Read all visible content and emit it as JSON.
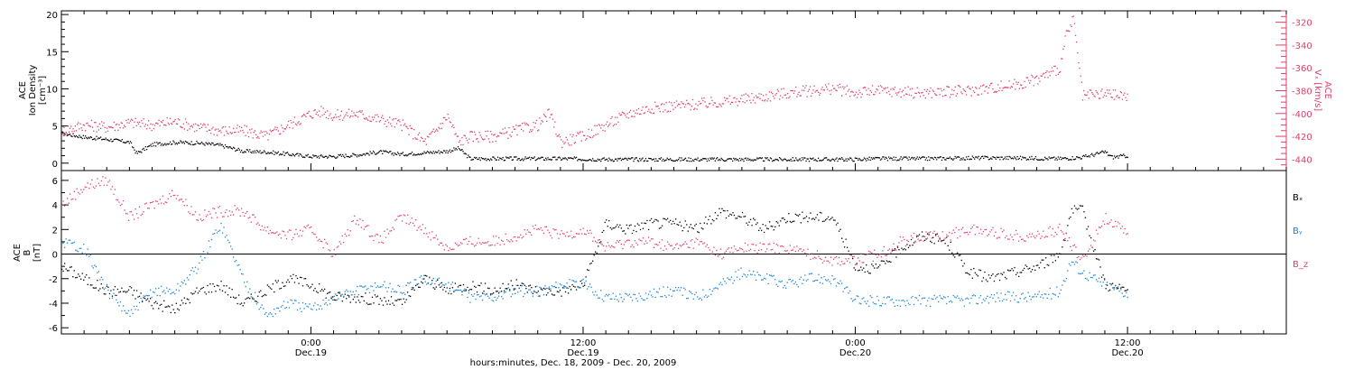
{
  "colors": {
    "black": "#000000",
    "red": "#e0406a",
    "blue": "#1a84d6"
  },
  "x_axis": {
    "title": "hours:minutes, Dec. 18, 2009 - Dec. 20, 2009",
    "range_hours": [
      0,
      54
    ],
    "ticks": [
      {
        "hour": 11,
        "time": "0:00",
        "date": "Dec.19"
      },
      {
        "hour": 23,
        "time": "12:00",
        "date": "Dec.19"
      },
      {
        "hour": 35,
        "time": "0:00",
        "date": "Dec.20"
      },
      {
        "hour": 47,
        "time": "12:00",
        "date": "Dec.20"
      }
    ]
  },
  "chart_data": [
    {
      "type": "scatter",
      "panel": "top",
      "ylabel_left": [
        "ACE",
        "Ion Density",
        "[cm⁻³]"
      ],
      "ylabel_right": [
        "ACE",
        "Vₓ [km/s]"
      ],
      "ylim_left": [
        -1,
        20.5
      ],
      "ylim_right": [
        -450,
        -310
      ],
      "yticks_left": [
        0,
        5,
        10,
        15,
        20
      ],
      "yticks_right": [
        -320,
        -340,
        -360,
        -380,
        -400,
        -420,
        -440
      ],
      "series": [
        {
          "key": "density",
          "axis": "left",
          "color": "black",
          "x": [
            0,
            1,
            2,
            3,
            3.3,
            4,
            5,
            6,
            7,
            8,
            9,
            10,
            11,
            12,
            13,
            14,
            15,
            16,
            17,
            17.5,
            18,
            19,
            20,
            22,
            24,
            26,
            28,
            30,
            32,
            34,
            35,
            36,
            38,
            40,
            42,
            44,
            45,
            46,
            46.3,
            47
          ],
          "y": [
            4,
            3.5,
            3.2,
            2.8,
            1.3,
            2.5,
            2.8,
            2.7,
            2.4,
            1.6,
            1.5,
            1.2,
            0.9,
            0.9,
            1.1,
            1.5,
            1.2,
            1.4,
            1.6,
            2.0,
            0.6,
            0.6,
            0.6,
            0.6,
            0.5,
            0.5,
            0.5,
            0.5,
            0.5,
            0.5,
            0.5,
            0.6,
            0.6,
            0.7,
            0.7,
            0.6,
            0.8,
            1.5,
            0.8,
            1.0
          ]
        },
        {
          "key": "vx",
          "axis": "right",
          "color": "red",
          "x": [
            0,
            1,
            2,
            3,
            4,
            5,
            6,
            7,
            8,
            9,
            10,
            11,
            11.5,
            12,
            13,
            14,
            15,
            16,
            16.5,
            17,
            17.5,
            18,
            19,
            20,
            21,
            21.5,
            22,
            23,
            24,
            25,
            26,
            28,
            30,
            32,
            34,
            35,
            36,
            38,
            40,
            42,
            43,
            44,
            44.3,
            44.6,
            45,
            46,
            47
          ],
          "y": [
            -415,
            -410,
            -412,
            -408,
            -410,
            -407,
            -412,
            -415,
            -415,
            -420,
            -410,
            -400,
            -398,
            -402,
            -400,
            -405,
            -410,
            -425,
            -415,
            -402,
            -425,
            -420,
            -420,
            -415,
            -410,
            -400,
            -425,
            -420,
            -410,
            -400,
            -395,
            -392,
            -388,
            -382,
            -378,
            -382,
            -380,
            -382,
            -380,
            -375,
            -370,
            -360,
            -330,
            -318,
            -385,
            -383,
            -385
          ]
        }
      ]
    },
    {
      "type": "scatter",
      "panel": "bottom",
      "ylabel_left": [
        "ACE",
        "B",
        "[nT]"
      ],
      "ylim": [
        -6.5,
        6.8
      ],
      "yticks": [
        -6,
        -4,
        -2,
        0,
        2,
        4,
        6
      ],
      "legend_position": "right",
      "series": [
        {
          "name": "Bₓ",
          "color": "black",
          "x": [
            0,
            1,
            2,
            3,
            4,
            5,
            6,
            7,
            8,
            9,
            10,
            11,
            12,
            13,
            14,
            15,
            16,
            17,
            18,
            19,
            20,
            21,
            22,
            23,
            24,
            25,
            26,
            27,
            28,
            29,
            30,
            31,
            32,
            33,
            34,
            35,
            36,
            37,
            38,
            39,
            40,
            41,
            42,
            43,
            44,
            44.5,
            45,
            46,
            47
          ],
          "y": [
            -1,
            -2,
            -3,
            -3,
            -4,
            -4.5,
            -3,
            -2.5,
            -4,
            -3,
            -2,
            -2.5,
            -3.5,
            -3.5,
            -3.8,
            -4,
            -2,
            -3,
            -2.5,
            -3,
            -2.5,
            -3,
            -3,
            -2.5,
            2.5,
            2,
            2.5,
            2.5,
            2,
            3.5,
            3,
            2,
            3,
            3,
            3,
            -1,
            -1.2,
            0.5,
            1.5,
            1,
            -1.5,
            -2,
            -1.5,
            -1,
            0,
            3.5,
            3.5,
            -2.5,
            -3
          ]
        },
        {
          "name": "Bᵧ",
          "color": "blue",
          "x": [
            0,
            1,
            2,
            3,
            4,
            5,
            6,
            7,
            8,
            9,
            10,
            11,
            12,
            13,
            14,
            15,
            16,
            17,
            18,
            19,
            20,
            21,
            22,
            23,
            24,
            25,
            26,
            27,
            28,
            29,
            30,
            31,
            32,
            33,
            34,
            35,
            36,
            37,
            38,
            39,
            40,
            41,
            42,
            43,
            44,
            44.5,
            45,
            46,
            47
          ],
          "y": [
            1,
            0.5,
            -3,
            -5,
            -3,
            -3,
            -1,
            2.5,
            -2,
            -5,
            -4,
            -4.5,
            -3.5,
            -3,
            -2.5,
            -3,
            -2,
            -2.5,
            -3.5,
            -3.5,
            -3,
            -3,
            -2.5,
            -2.5,
            -3.5,
            -3.5,
            -3.2,
            -3,
            -3.5,
            -2.5,
            -1.5,
            -2,
            -2.5,
            -2,
            -2,
            -3.8,
            -3.8,
            -3.8,
            -3.8,
            -3.8,
            -3.8,
            -3.5,
            -3.5,
            -3.5,
            -3,
            -0.5,
            -1.5,
            -2.5,
            -3.2
          ]
        },
        {
          "name": "B_z",
          "color": "red",
          "x": [
            0,
            1,
            2,
            3,
            4,
            5,
            6,
            7,
            8,
            9,
            10,
            11,
            12,
            13,
            14,
            15,
            16,
            17,
            18,
            19,
            20,
            21,
            22,
            23,
            24,
            25,
            26,
            27,
            28,
            29,
            30,
            31,
            32,
            33,
            34,
            35,
            36,
            37,
            38,
            39,
            40,
            41,
            42,
            43,
            44,
            45,
            46,
            47
          ],
          "y": [
            4,
            5.5,
            6,
            3,
            4,
            5,
            3,
            3.5,
            3.5,
            2,
            1.5,
            2,
            0,
            3,
            1,
            3,
            2,
            0.5,
            1,
            1,
            1.5,
            2,
            1.5,
            2,
            0.5,
            1,
            1,
            0.5,
            1,
            0,
            0.5,
            0.5,
            0.5,
            0,
            -0.5,
            -0.5,
            0,
            1,
            1.5,
            1.5,
            2,
            1.8,
            1.5,
            1.5,
            2,
            -0.5,
            3,
            1.5
          ]
        }
      ]
    }
  ]
}
